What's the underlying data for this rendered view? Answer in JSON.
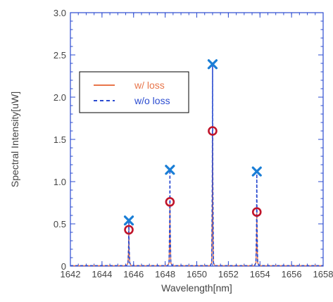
{
  "chart_data": {
    "type": "line",
    "xlabel": "Wavelength[nm]",
    "ylabel": "Spectral Intensity[uW]",
    "xlim": [
      1642,
      1658
    ],
    "ylim": [
      0,
      3.0
    ],
    "x_ticks": [
      "1642",
      "1644",
      "1646",
      "1648",
      "1650",
      "1652",
      "1654",
      "1656",
      "1658"
    ],
    "y_ticks": [
      "0",
      "0.5",
      "1.0",
      "1.5",
      "2.0",
      "2.5",
      "3.0"
    ],
    "legend_position": "upper-left",
    "series": [
      {
        "name": "w/ loss",
        "style": "solid",
        "color": "#e8754a",
        "peak_marker": "circle",
        "marker_color": "#c0142a",
        "peaks": [
          {
            "x": 1645.7,
            "y": 0.43
          },
          {
            "x": 1648.3,
            "y": 0.76
          },
          {
            "x": 1651.0,
            "y": 1.6
          },
          {
            "x": 1653.8,
            "y": 0.64
          }
        ]
      },
      {
        "name": "w/o loss",
        "style": "dashed",
        "color": "#2a4bd0",
        "peak_marker": "cross",
        "marker_color": "#1a7ed6",
        "peaks": [
          {
            "x": 1645.7,
            "y": 0.54
          },
          {
            "x": 1648.3,
            "y": 1.14
          },
          {
            "x": 1651.0,
            "y": 2.39
          },
          {
            "x": 1653.8,
            "y": 1.12
          }
        ]
      }
    ]
  }
}
